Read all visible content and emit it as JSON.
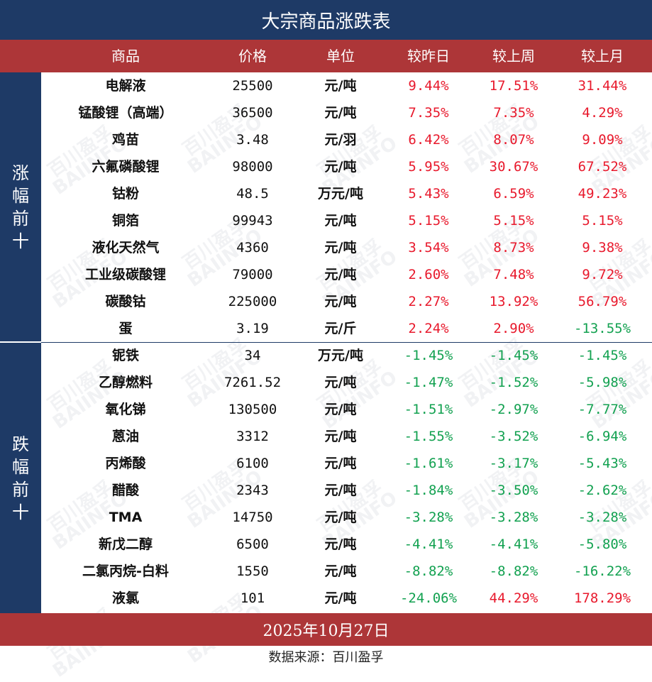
{
  "title": "大宗商品涨跌表",
  "headers": {
    "name": "商品",
    "price": "价格",
    "unit": "单位",
    "day": "较昨日",
    "week": "较上周",
    "month": "较上月"
  },
  "section_up": {
    "chars": [
      "涨",
      "幅",
      "前",
      "十"
    ]
  },
  "section_down": {
    "chars": [
      "跌",
      "幅",
      "前",
      "十"
    ]
  },
  "rows": [
    {
      "name": "电解液",
      "price": "25500",
      "unit": "元/吨",
      "day": "9.44%",
      "week": "17.51%",
      "month": "31.44%"
    },
    {
      "name": "锰酸锂（高端）",
      "price": "36500",
      "unit": "元/吨",
      "day": "7.35%",
      "week": "7.35%",
      "month": "4.29%"
    },
    {
      "name": "鸡苗",
      "price": "3.48",
      "unit": "元/羽",
      "day": "6.42%",
      "week": "8.07%",
      "month": "9.09%"
    },
    {
      "name": "六氟磷酸锂",
      "price": "98000",
      "unit": "元/吨",
      "day": "5.95%",
      "week": "30.67%",
      "month": "67.52%"
    },
    {
      "name": "钴粉",
      "price": "48.5",
      "unit": "万元/吨",
      "day": "5.43%",
      "week": "6.59%",
      "month": "49.23%"
    },
    {
      "name": "铜箔",
      "price": "99943",
      "unit": "元/吨",
      "day": "5.15%",
      "week": "5.15%",
      "month": "5.15%"
    },
    {
      "name": "液化天然气",
      "price": "4360",
      "unit": "元/吨",
      "day": "3.54%",
      "week": "8.73%",
      "month": "9.38%"
    },
    {
      "name": "工业级碳酸锂",
      "price": "79000",
      "unit": "元/吨",
      "day": "2.60%",
      "week": "7.48%",
      "month": "9.72%"
    },
    {
      "name": "碳酸钴",
      "price": "225000",
      "unit": "元/吨",
      "day": "2.27%",
      "week": "13.92%",
      "month": "56.79%"
    },
    {
      "name": "蛋",
      "price": "3.19",
      "unit": "元/斤",
      "day": "2.24%",
      "week": "2.90%",
      "month": "-13.55%"
    },
    {
      "name": "铌铁",
      "price": "34",
      "unit": "万元/吨",
      "day": "-1.45%",
      "week": "-1.45%",
      "month": "-1.45%"
    },
    {
      "name": "乙醇燃料",
      "price": "7261.52",
      "unit": "元/吨",
      "day": "-1.47%",
      "week": "-1.52%",
      "month": "-5.98%"
    },
    {
      "name": "氧化锑",
      "price": "130500",
      "unit": "元/吨",
      "day": "-1.51%",
      "week": "-2.97%",
      "month": "-7.77%"
    },
    {
      "name": "蒽油",
      "price": "3312",
      "unit": "元/吨",
      "day": "-1.55%",
      "week": "-3.52%",
      "month": "-6.94%"
    },
    {
      "name": "丙烯酸",
      "price": "6100",
      "unit": "元/吨",
      "day": "-1.61%",
      "week": "-3.17%",
      "month": "-5.43%"
    },
    {
      "name": "醋酸",
      "price": "2343",
      "unit": "元/吨",
      "day": "-1.84%",
      "week": "-3.50%",
      "month": "-2.62%"
    },
    {
      "name": "TMA",
      "price": "14750",
      "unit": "元/吨",
      "day": "-3.28%",
      "week": "-3.28%",
      "month": "-3.28%"
    },
    {
      "name": "新戊二醇",
      "price": "6500",
      "unit": "元/吨",
      "day": "-4.41%",
      "week": "-4.41%",
      "month": "-5.80%"
    },
    {
      "name": "二氯丙烷-白料",
      "price": "1550",
      "unit": "元/吨",
      "day": "-8.82%",
      "week": "-8.82%",
      "month": "-16.22%"
    },
    {
      "name": "液氯",
      "price": "101",
      "unit": "元/吨",
      "day": "-24.06%",
      "week": "44.29%",
      "month": "178.29%"
    }
  ],
  "date": "2025年10月27日",
  "source": "数据来源：百川盈孚",
  "watermark": {
    "line1": "百川盈孚",
    "line2": "BAIINFO"
  },
  "colors": {
    "navy": "#1e3a66",
    "red_band": "#ad3638",
    "up": "#e8192c",
    "down": "#12a150"
  }
}
